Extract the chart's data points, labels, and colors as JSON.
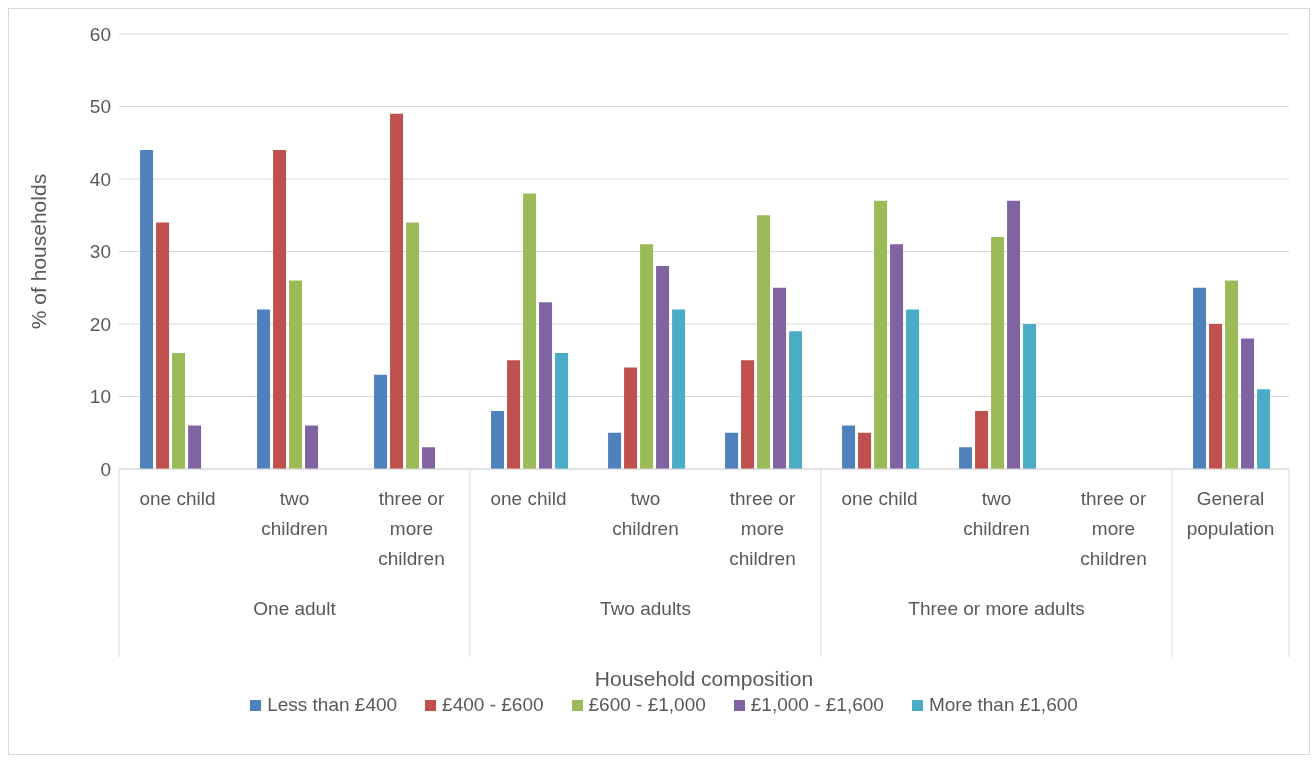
{
  "chart_data": {
    "type": "bar",
    "xlabel": "Household composition",
    "ylabel": "% of households",
    "categories": [
      "one child",
      "two children",
      "three or more children",
      "one child",
      "two children",
      "three or more children",
      "one child",
      "two children",
      "three or more children",
      "General population"
    ],
    "annotations": [
      "One adult",
      "Two adults",
      "Three or more adults"
    ],
    "series": [
      {
        "name": "Less than £400",
        "color": "#4f81bd",
        "values": [
          44,
          22,
          13,
          8,
          5,
          5,
          6,
          3,
          null,
          25
        ]
      },
      {
        "name": "£400 - £600",
        "color": "#c0504d",
        "values": [
          34,
          44,
          49,
          15,
          14,
          15,
          5,
          8,
          null,
          20
        ]
      },
      {
        "name": "£600 - £1,000",
        "color": "#9bbb59",
        "values": [
          16,
          26,
          34,
          38,
          31,
          35,
          37,
          32,
          null,
          26
        ]
      },
      {
        "name": "£1,000 - £1,600",
        "color": "#8064a2",
        "values": [
          6,
          6,
          3,
          23,
          28,
          25,
          31,
          37,
          null,
          18
        ]
      },
      {
        "name": "More than £1,600",
        "color": "#4bacc6",
        "values": [
          null,
          null,
          null,
          16,
          22,
          19,
          22,
          20,
          null,
          11
        ]
      }
    ],
    "ylim": [
      0,
      60
    ],
    "yticks": [
      0,
      10,
      20,
      30,
      40,
      50,
      60
    ],
    "grid": "y",
    "legend": "bottom"
  }
}
